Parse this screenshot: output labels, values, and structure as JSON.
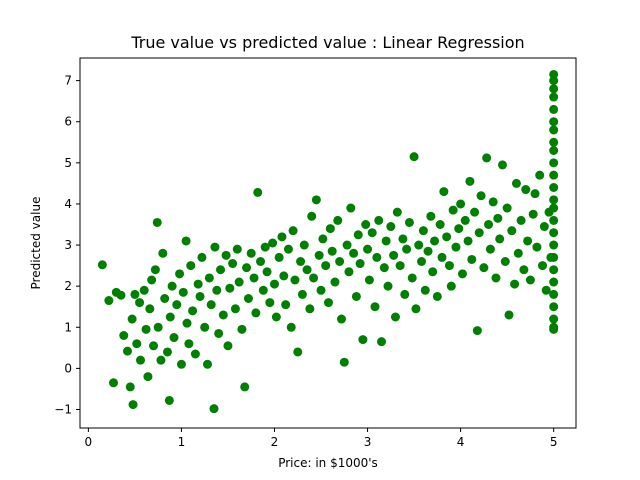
{
  "chart_data": {
    "type": "scatter",
    "title": "True value vs predicted value : Linear Regression",
    "xlabel": "Price: in $1000's",
    "ylabel": "Predicted value",
    "xlim": [
      -0.09,
      5.24
    ],
    "ylim": [
      -1.45,
      7.55
    ],
    "xticks": [
      0,
      1,
      2,
      3,
      4,
      5
    ],
    "yticks": [
      -1,
      0,
      1,
      2,
      3,
      4,
      5,
      6,
      7
    ],
    "grid": false,
    "legend": "none",
    "marker_color": "#008000",
    "series": [
      {
        "points": [
          [
            0.15,
            2.52
          ],
          [
            0.22,
            1.65
          ],
          [
            0.27,
            -0.35
          ],
          [
            0.3,
            1.85
          ],
          [
            0.35,
            1.78
          ],
          [
            0.38,
            0.8
          ],
          [
            0.42,
            0.42
          ],
          [
            0.45,
            -0.45
          ],
          [
            0.47,
            1.2
          ],
          [
            0.48,
            -0.88
          ],
          [
            0.5,
            1.8
          ],
          [
            0.52,
            0.6
          ],
          [
            0.55,
            1.6
          ],
          [
            0.56,
            0.2
          ],
          [
            0.6,
            1.9
          ],
          [
            0.62,
            0.95
          ],
          [
            0.64,
            -0.2
          ],
          [
            0.66,
            1.45
          ],
          [
            0.68,
            2.15
          ],
          [
            0.7,
            0.55
          ],
          [
            0.72,
            2.4
          ],
          [
            0.74,
            3.55
          ],
          [
            0.75,
            1.0
          ],
          [
            0.78,
            0.2
          ],
          [
            0.8,
            2.8
          ],
          [
            0.82,
            1.7
          ],
          [
            0.85,
            0.4
          ],
          [
            0.87,
            -0.78
          ],
          [
            0.88,
            1.25
          ],
          [
            0.9,
            2.0
          ],
          [
            0.92,
            0.75
          ],
          [
            0.95,
            1.55
          ],
          [
            0.98,
            2.3
          ],
          [
            1.0,
            0.1
          ],
          [
            1.02,
            1.85
          ],
          [
            1.05,
            3.1
          ],
          [
            1.06,
            1.1
          ],
          [
            1.08,
            0.6
          ],
          [
            1.1,
            2.5
          ],
          [
            1.12,
            1.4
          ],
          [
            1.15,
            0.35
          ],
          [
            1.18,
            2.05
          ],
          [
            1.2,
            1.75
          ],
          [
            1.22,
            2.7
          ],
          [
            1.25,
            1.0
          ],
          [
            1.28,
            0.1
          ],
          [
            1.3,
            2.2
          ],
          [
            1.32,
            1.55
          ],
          [
            1.35,
            -0.98
          ],
          [
            1.36,
            2.95
          ],
          [
            1.38,
            1.9
          ],
          [
            1.4,
            0.85
          ],
          [
            1.42,
            2.4
          ],
          [
            1.45,
            1.3
          ],
          [
            1.48,
            2.75
          ],
          [
            1.5,
            0.55
          ],
          [
            1.52,
            1.95
          ],
          [
            1.55,
            2.55
          ],
          [
            1.58,
            1.45
          ],
          [
            1.6,
            2.9
          ],
          [
            1.62,
            2.1
          ],
          [
            1.65,
            0.95
          ],
          [
            1.68,
            -0.45
          ],
          [
            1.7,
            2.45
          ],
          [
            1.72,
            1.7
          ],
          [
            1.75,
            2.8
          ],
          [
            1.78,
            2.2
          ],
          [
            1.8,
            1.35
          ],
          [
            1.82,
            4.28
          ],
          [
            1.85,
            2.6
          ],
          [
            1.88,
            1.9
          ],
          [
            1.9,
            2.95
          ],
          [
            1.92,
            2.35
          ],
          [
            1.95,
            1.6
          ],
          [
            1.98,
            3.05
          ],
          [
            2.0,
            2.05
          ],
          [
            2.02,
            1.25
          ],
          [
            2.05,
            2.7
          ],
          [
            2.08,
            3.2
          ],
          [
            2.1,
            2.25
          ],
          [
            2.12,
            1.55
          ],
          [
            2.15,
            2.9
          ],
          [
            2.18,
            1.0
          ],
          [
            2.2,
            3.35
          ],
          [
            2.22,
            2.15
          ],
          [
            2.25,
            0.4
          ],
          [
            2.28,
            2.6
          ],
          [
            2.3,
            1.8
          ],
          [
            2.32,
            3.0
          ],
          [
            2.35,
            2.4
          ],
          [
            2.38,
            1.45
          ],
          [
            2.4,
            3.7
          ],
          [
            2.42,
            2.2
          ],
          [
            2.45,
            4.1
          ],
          [
            2.48,
            2.75
          ],
          [
            2.5,
            1.9
          ],
          [
            2.52,
            3.15
          ],
          [
            2.55,
            2.5
          ],
          [
            2.58,
            1.6
          ],
          [
            2.6,
            3.4
          ],
          [
            2.62,
            2.85
          ],
          [
            2.65,
            2.1
          ],
          [
            2.68,
            3.6
          ],
          [
            2.7,
            2.6
          ],
          [
            2.72,
            1.2
          ],
          [
            2.75,
            0.15
          ],
          [
            2.78,
            3.0
          ],
          [
            2.8,
            2.35
          ],
          [
            2.82,
            3.9
          ],
          [
            2.85,
            2.8
          ],
          [
            2.88,
            1.75
          ],
          [
            2.9,
            3.25
          ],
          [
            2.92,
            2.55
          ],
          [
            2.95,
            0.7
          ],
          [
            2.98,
            3.5
          ],
          [
            3.0,
            2.9
          ],
          [
            3.02,
            2.15
          ],
          [
            3.05,
            3.3
          ],
          [
            3.08,
            1.5
          ],
          [
            3.1,
            2.7
          ],
          [
            3.12,
            3.6
          ],
          [
            3.15,
            0.65
          ],
          [
            3.18,
            2.45
          ],
          [
            3.2,
            3.1
          ],
          [
            3.22,
            2.0
          ],
          [
            3.25,
            3.45
          ],
          [
            3.28,
            2.75
          ],
          [
            3.3,
            1.25
          ],
          [
            3.32,
            3.8
          ],
          [
            3.35,
            2.5
          ],
          [
            3.38,
            3.15
          ],
          [
            3.4,
            1.8
          ],
          [
            3.42,
            2.9
          ],
          [
            3.45,
            3.55
          ],
          [
            3.48,
            2.2
          ],
          [
            3.5,
            5.15
          ],
          [
            3.52,
            1.45
          ],
          [
            3.55,
            3.0
          ],
          [
            3.58,
            2.6
          ],
          [
            3.6,
            3.35
          ],
          [
            3.62,
            1.9
          ],
          [
            3.65,
            2.85
          ],
          [
            3.68,
            3.7
          ],
          [
            3.7,
            2.35
          ],
          [
            3.72,
            3.1
          ],
          [
            3.75,
            1.75
          ],
          [
            3.78,
            3.5
          ],
          [
            3.8,
            2.7
          ],
          [
            3.82,
            4.3
          ],
          [
            3.85,
            3.2
          ],
          [
            3.88,
            2.5
          ],
          [
            3.9,
            2.0
          ],
          [
            3.92,
            3.85
          ],
          [
            3.95,
            2.95
          ],
          [
            3.98,
            3.4
          ],
          [
            4.0,
            4.0
          ],
          [
            4.02,
            2.3
          ],
          [
            4.05,
            3.6
          ],
          [
            4.08,
            3.1
          ],
          [
            4.1,
            4.55
          ],
          [
            4.12,
            2.65
          ],
          [
            4.15,
            3.8
          ],
          [
            4.18,
            0.92
          ],
          [
            4.2,
            3.3
          ],
          [
            4.22,
            4.2
          ],
          [
            4.25,
            2.45
          ],
          [
            4.28,
            5.12
          ],
          [
            4.3,
            3.5
          ],
          [
            4.32,
            2.9
          ],
          [
            4.35,
            4.05
          ],
          [
            4.38,
            2.2
          ],
          [
            4.4,
            3.65
          ],
          [
            4.42,
            3.15
          ],
          [
            4.45,
            4.95
          ],
          [
            4.48,
            2.6
          ],
          [
            4.5,
            3.9
          ],
          [
            4.52,
            1.3
          ],
          [
            4.55,
            3.35
          ],
          [
            4.58,
            2.05
          ],
          [
            4.6,
            4.5
          ],
          [
            4.62,
            2.8
          ],
          [
            4.65,
            3.6
          ],
          [
            4.68,
            2.4
          ],
          [
            4.7,
            4.35
          ],
          [
            4.72,
            3.1
          ],
          [
            4.75,
            2.15
          ],
          [
            4.78,
            3.75
          ],
          [
            4.8,
            4.25
          ],
          [
            4.82,
            2.95
          ],
          [
            4.85,
            4.7
          ],
          [
            4.88,
            2.5
          ],
          [
            4.9,
            3.45
          ],
          [
            4.92,
            1.9
          ],
          [
            4.95,
            3.8
          ],
          [
            4.97,
            2.7
          ],
          [
            5.0,
            7.15
          ],
          [
            5.0,
            7.0
          ],
          [
            5.0,
            6.8
          ],
          [
            5.0,
            6.6
          ],
          [
            5.0,
            6.3
          ],
          [
            5.0,
            6.0
          ],
          [
            5.0,
            5.8
          ],
          [
            5.0,
            5.5
          ],
          [
            5.0,
            5.3
          ],
          [
            5.0,
            5.0
          ],
          [
            5.0,
            4.7
          ],
          [
            5.0,
            4.4
          ],
          [
            5.0,
            4.1
          ],
          [
            5.0,
            3.9
          ],
          [
            5.0,
            3.6
          ],
          [
            5.0,
            3.3
          ],
          [
            5.0,
            3.0
          ],
          [
            5.0,
            2.7
          ],
          [
            5.0,
            2.4
          ],
          [
            5.0,
            2.1
          ],
          [
            5.0,
            1.8
          ],
          [
            5.0,
            1.5
          ],
          [
            5.0,
            1.2
          ],
          [
            5.0,
            1.0
          ],
          [
            5.0,
            0.95
          ]
        ]
      }
    ]
  }
}
